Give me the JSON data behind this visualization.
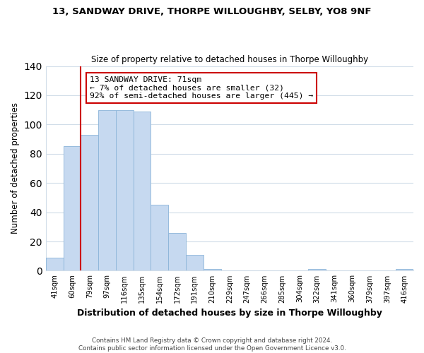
{
  "title": "13, SANDWAY DRIVE, THORPE WILLOUGHBY, SELBY, YO8 9NF",
  "subtitle": "Size of property relative to detached houses in Thorpe Willoughby",
  "xlabel": "Distribution of detached houses by size in Thorpe Willoughby",
  "ylabel": "Number of detached properties",
  "bar_labels": [
    "41sqm",
    "60sqm",
    "79sqm",
    "97sqm",
    "116sqm",
    "135sqm",
    "154sqm",
    "172sqm",
    "191sqm",
    "210sqm",
    "229sqm",
    "247sqm",
    "266sqm",
    "285sqm",
    "304sqm",
    "322sqm",
    "341sqm",
    "360sqm",
    "379sqm",
    "397sqm",
    "416sqm"
  ],
  "bar_values": [
    9,
    85,
    93,
    110,
    110,
    109,
    45,
    26,
    11,
    1,
    0,
    0,
    0,
    0,
    0,
    1,
    0,
    0,
    0,
    0,
    1
  ],
  "bar_color": "#c6d9f0",
  "bar_edge_color": "#8ab4d8",
  "vline_x": 1.5,
  "vline_color": "#cc0000",
  "ylim": [
    0,
    140
  ],
  "yticks": [
    0,
    20,
    40,
    60,
    80,
    100,
    120,
    140
  ],
  "annotation_text": "13 SANDWAY DRIVE: 71sqm\n← 7% of detached houses are smaller (32)\n92% of semi-detached houses are larger (445) →",
  "annotation_box_color": "#ffffff",
  "annotation_box_edge": "#cc0000",
  "footer1": "Contains HM Land Registry data © Crown copyright and database right 2024.",
  "footer2": "Contains public sector information licensed under the Open Government Licence v3.0.",
  "bg_color": "#ffffff",
  "grid_color": "#d0dce8"
}
